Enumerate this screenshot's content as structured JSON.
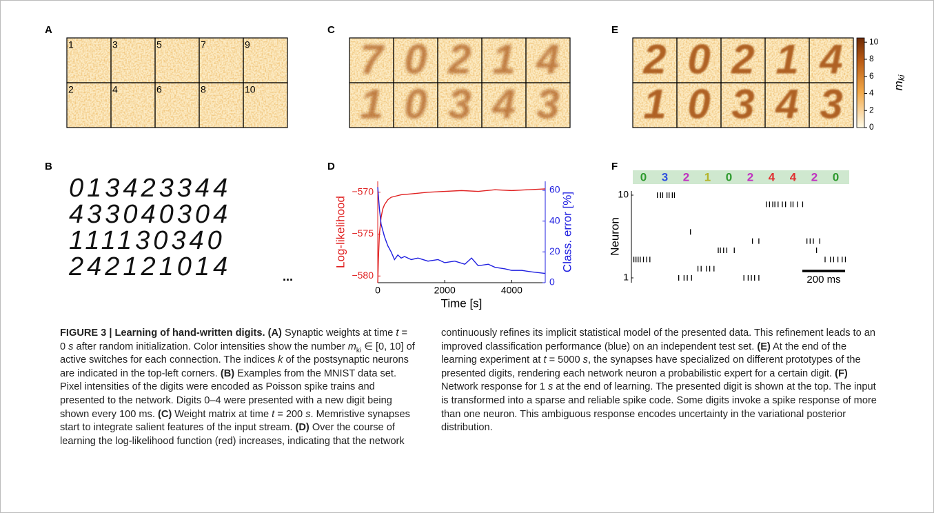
{
  "panel_labels": [
    "A",
    "B",
    "C",
    "D",
    "E",
    "F"
  ],
  "panel_a": {
    "indices": [
      "1",
      "3",
      "5",
      "7",
      "9",
      "2",
      "4",
      "6",
      "8",
      "10"
    ]
  },
  "panel_b": {
    "rows": [
      "013423344",
      "433040304",
      "111130340",
      "242121014"
    ],
    "ellipsis": "..."
  },
  "panel_c": {
    "digits": [
      "7",
      "0",
      "2",
      "1",
      "4",
      "1",
      "0",
      "3",
      "4",
      "3"
    ]
  },
  "panel_e": {
    "digits": [
      "2",
      "0",
      "2",
      "1",
      "4",
      "1",
      "0",
      "3",
      "4",
      "3"
    ],
    "colorbar": {
      "ylim": [
        0,
        10.5
      ],
      "ticks": [
        0,
        2,
        4,
        6,
        8,
        10
      ],
      "label": "m",
      "label_sub": "ki"
    }
  },
  "chart_data": {
    "type": "line",
    "xlabel": "Time [s]",
    "ylabel": "Log-likelihood",
    "y2label": "Class. error [%]",
    "xlim": [
      0,
      5000
    ],
    "xticks": [
      0,
      2000,
      4000
    ],
    "ylim": [
      -580.8,
      -568.7
    ],
    "yticks": [
      {
        "value": -580,
        "label": "−580"
      },
      {
        "value": -575,
        "label": "−575"
      },
      {
        "value": -570,
        "label": "−570"
      }
    ],
    "y2lim": [
      0,
      65.8
    ],
    "y2ticks": [
      0,
      20,
      40,
      60
    ],
    "series": [
      {
        "color": "#e02020",
        "x": [
          0,
          20,
          50,
          100,
          150,
          200,
          300,
          400,
          500,
          700,
          1000,
          1500,
          2000,
          2500,
          3000,
          3500,
          4000,
          4500,
          5000
        ],
        "values": [
          -580.8,
          -578,
          -575,
          -573,
          -572,
          -571.5,
          -570.9,
          -570.6,
          -570.5,
          -570.3,
          -570.2,
          -570.0,
          -569.9,
          -569.8,
          -569.9,
          -569.7,
          -569.8,
          -569.7,
          -569.6
        ]
      },
      {
        "color": "#2020e0",
        "axis": "y2",
        "x": [
          0,
          50,
          100,
          200,
          300,
          400,
          500,
          600,
          700,
          800,
          1000,
          1200,
          1500,
          1800,
          2000,
          2300,
          2600,
          2800,
          3000,
          3300,
          3500,
          3800,
          4000,
          4300,
          4600,
          5000
        ],
        "values": [
          62,
          48,
          38,
          30,
          24,
          20,
          15,
          18,
          16,
          17,
          15,
          16,
          14,
          15,
          13,
          14,
          12,
          16,
          11,
          12,
          10,
          9,
          8,
          8,
          7,
          6
        ]
      }
    ]
  },
  "panel_f": {
    "digits": [
      "0",
      "3",
      "2",
      "1",
      "0",
      "2",
      "4",
      "4",
      "2",
      "0"
    ],
    "digit_colors": {
      "0": "#2e9a2e",
      "1": "#b4b42a",
      "2": "#c030c0",
      "3": "#3050e0",
      "4": "#e03030"
    },
    "ylabel": "Neuron",
    "yticks": [
      1,
      10
    ],
    "ylim": [
      1,
      10
    ],
    "xlim": [
      0,
      1000
    ],
    "spikes": [
      {
        "neuron": 10,
        "times": [
          115,
          130,
          140,
          160,
          170,
          185,
          195
        ]
      },
      {
        "neuron": 9,
        "times": [
          625,
          640,
          655,
          665,
          680,
          700,
          715,
          740,
          750,
          770,
          795
        ]
      },
      {
        "neuron": 6,
        "times": [
          270
        ]
      },
      {
        "neuron": 5,
        "times": [
          560,
          590,
          815,
          830,
          845,
          875
        ]
      },
      {
        "neuron": 4,
        "times": [
          400,
          410,
          425,
          440,
          475,
          860
        ]
      },
      {
        "neuron": 3,
        "times": [
          5,
          15,
          25,
          35,
          50,
          65,
          80,
          900,
          925,
          940,
          960,
          980,
          995
        ]
      },
      {
        "neuron": 2,
        "times": [
          305,
          320,
          345,
          360,
          380
        ]
      },
      {
        "neuron": 1,
        "times": [
          215,
          240,
          255,
          275,
          520,
          540,
          555,
          570,
          590
        ]
      }
    ],
    "scale_bar": {
      "length": 200,
      "label": "200 ms"
    }
  },
  "caption": {
    "left": [
      {
        "text": "FIGURE 3 | Learning of hand-written digits. (A)",
        "style": "b"
      },
      {
        "text": " Synaptic weights at time "
      },
      {
        "text": "t",
        "style": "i"
      },
      {
        "text": " = 0 "
      },
      {
        "text": "s",
        "style": "i"
      },
      {
        "text": " after random initialization. Color intensities show the number "
      },
      {
        "text": "m",
        "style": "i"
      },
      {
        "text": "ki",
        "style": "sub"
      },
      {
        "text": " ∈ [0, 10] of active switches for each connection. The indices "
      },
      {
        "text": "k",
        "style": "i"
      },
      {
        "text": " of the postsynaptic neurons are indicated in the top-left corners. "
      },
      {
        "text": "(B)",
        "style": "b"
      },
      {
        "text": " Examples from the MNIST data set. Pixel intensities of the digits were encoded as Poisson spike trains and presented to the network. Digits 0–4 were presented with a new digit being shown every 100 ms. "
      },
      {
        "text": "(C)",
        "style": "b"
      },
      {
        "text": " Weight matrix at time "
      },
      {
        "text": "t",
        "style": "i"
      },
      {
        "text": " = 200 "
      },
      {
        "text": "s",
        "style": "i"
      },
      {
        "text": ". Memristive synapses start to integrate salient features of the input stream. "
      },
      {
        "text": "(D)",
        "style": "b"
      },
      {
        "text": " Over the course of learning the log-likelihood function (red) increases, indicating that the network"
      }
    ],
    "right": [
      {
        "text": "continuously refines its implicit statistical model of the presented data. This refinement leads to an improved classification performance (blue) on an independent test set. "
      },
      {
        "text": "(E)",
        "style": "b"
      },
      {
        "text": " At the end of the learning experiment at "
      },
      {
        "text": "t",
        "style": "i"
      },
      {
        "text": " = 5000 "
      },
      {
        "text": "s",
        "style": "i"
      },
      {
        "text": ", the synapses have specialized on different prototypes of the presented digits, rendering each network neuron a probabilistic expert for a certain digit. "
      },
      {
        "text": "(F)",
        "style": "b"
      },
      {
        "text": " Network response for 1 "
      },
      {
        "text": "s",
        "style": "i"
      },
      {
        "text": " at the end of learning. The presented digit is shown at the top. The input is transformed into a sparse and reliable spike code. Some digits invoke a spike response of more than one neuron. This ambiguous response encodes uncertainty in the variational posterior distribution."
      }
    ]
  }
}
